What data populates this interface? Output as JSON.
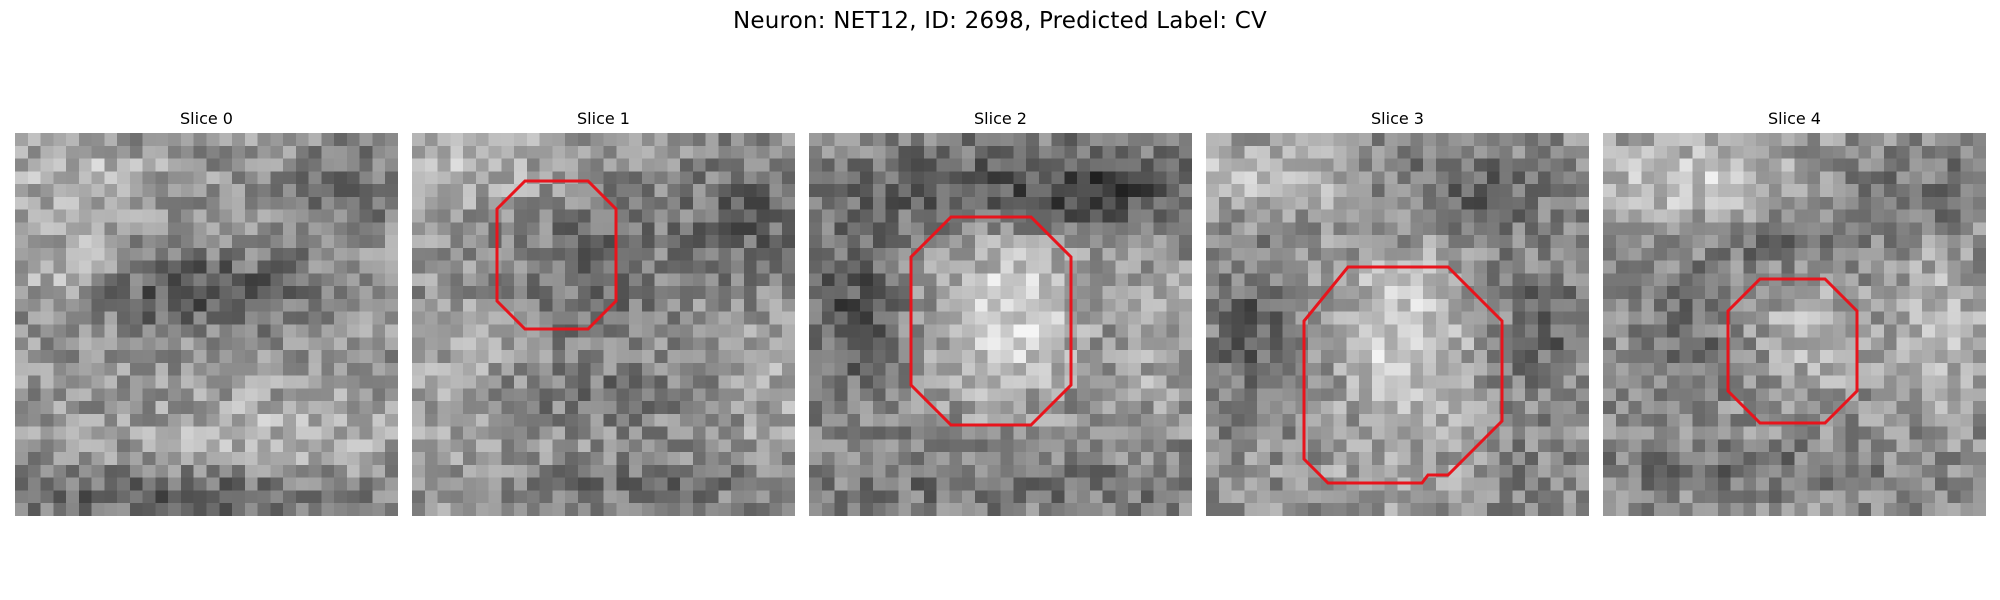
{
  "figure": {
    "title": "Neuron: NET12, ID: 2698, Predicted Label: CV"
  },
  "slices": [
    {
      "title": "Slice 0",
      "has_contour": false
    },
    {
      "title": "Slice 1",
      "has_contour": true
    },
    {
      "title": "Slice 2",
      "has_contour": true
    },
    {
      "title": "Slice 3",
      "has_contour": true
    },
    {
      "title": "Slice 4",
      "has_contour": true
    }
  ],
  "contour_color": "#e8141c",
  "colormap": "grayscale"
}
